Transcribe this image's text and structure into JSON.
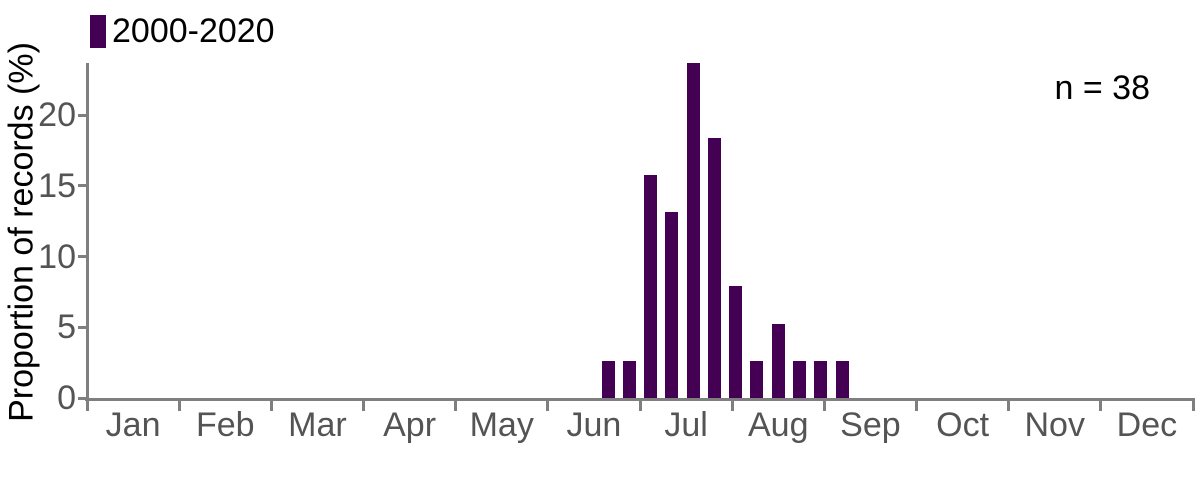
{
  "chart_data": {
    "type": "bar",
    "title": "",
    "ylabel": "Proportion of records (%)",
    "xlabel": "",
    "annotation": "n = 38",
    "bar_color": "#440154",
    "axis_color": "#7f7f7f",
    "tick_label_color": "#545454",
    "legend_position": "top-left",
    "grid": false,
    "series": [
      {
        "name": "2000-2020",
        "x_unit": "week_of_year",
        "weeks": [
          25,
          26,
          27,
          28,
          29,
          30,
          31,
          32,
          33,
          34,
          35,
          36
        ],
        "values_percent": [
          2.63,
          2.63,
          15.79,
          13.16,
          23.68,
          18.42,
          7.89,
          2.63,
          5.26,
          2.63,
          2.63,
          2.63
        ]
      }
    ],
    "x_axis": {
      "tick_labels": [
        "Jan",
        "Feb",
        "Mar",
        "Apr",
        "May",
        "Jun",
        "Jul",
        "Aug",
        "Sep",
        "Oct",
        "Nov",
        "Dec"
      ],
      "months_total": 12,
      "weeks_total": 52
    },
    "y_axis": {
      "ticks": [
        0,
        5,
        10,
        15,
        20
      ],
      "range": [
        0,
        23.7
      ]
    }
  }
}
